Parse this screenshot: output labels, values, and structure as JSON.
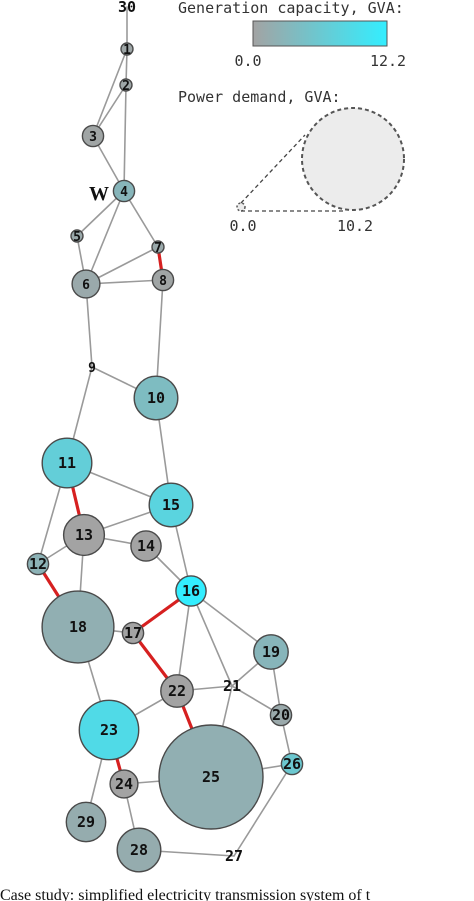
{
  "legend": {
    "generation_title": "Generation capacity, GVA:",
    "generation_min": "0.0",
    "generation_max": "12.2",
    "demand_title": "Power demand, GVA:",
    "demand_min": "0.0",
    "demand_max": "10.2",
    "gradient_low_color": "#a3a3a3",
    "gradient_high_color": "#33eeff"
  },
  "marker_label": "W",
  "caption": "Case study: simplified electricity transmission system of t",
  "colors": {
    "edge_normal": "#9a9a9a",
    "edge_critical": "#d62020",
    "node_stroke": "#4a4a4a",
    "label": "#111111"
  },
  "nodes": [
    {
      "id": "30",
      "gen": 0.0,
      "demand": 0.0
    },
    {
      "id": "1",
      "gen": 0.5,
      "demand": 0.0
    },
    {
      "id": "2",
      "gen": 0.5,
      "demand": 0.0
    },
    {
      "id": "3",
      "gen": 0.3,
      "demand": 0.1
    },
    {
      "id": "4",
      "gen": 3.0,
      "demand": 0.1
    },
    {
      "id": "5",
      "gen": 1.0,
      "demand": 0.0
    },
    {
      "id": "6",
      "gen": 1.0,
      "demand": 0.3
    },
    {
      "id": "7",
      "gen": 1.0,
      "demand": 0.0
    },
    {
      "id": "8",
      "gen": 0.3,
      "demand": 0.1
    },
    {
      "id": "9",
      "gen": 0.0,
      "demand": 0.0
    },
    {
      "id": "10",
      "gen": 4.0,
      "demand": 1.2
    },
    {
      "id": "11",
      "gen": 7.0,
      "demand": 1.7
    },
    {
      "id": "12",
      "gen": 2.5,
      "demand": 0.1
    },
    {
      "id": "13",
      "gen": 0.0,
      "demand": 1.0
    },
    {
      "id": "14",
      "gen": 0.0,
      "demand": 0.4
    },
    {
      "id": "15",
      "gen": 8.0,
      "demand": 1.2
    },
    {
      "id": "16",
      "gen": 12.2,
      "demand": 0.4
    },
    {
      "id": "17",
      "gen": 0.0,
      "demand": 0.1
    },
    {
      "id": "18",
      "gen": 2.0,
      "demand": 4.3
    },
    {
      "id": "19",
      "gen": 3.0,
      "demand": 0.6
    },
    {
      "id": "20",
      "gen": 1.0,
      "demand": 0.1
    },
    {
      "id": "21",
      "gen": 0.0,
      "demand": 0.0
    },
    {
      "id": "22",
      "gen": 0.0,
      "demand": 0.5
    },
    {
      "id": "23",
      "gen": 9.0,
      "demand": 2.7
    },
    {
      "id": "24",
      "gen": 0.0,
      "demand": 0.3
    },
    {
      "id": "25",
      "gen": 2.0,
      "demand": 10.2
    },
    {
      "id": "26",
      "gen": 6.0,
      "demand": 0.1
    },
    {
      "id": "27",
      "gen": 0.0,
      "demand": 0.0
    },
    {
      "id": "28",
      "gen": 1.5,
      "demand": 1.2
    },
    {
      "id": "29",
      "gen": 1.5,
      "demand": 0.9
    }
  ],
  "edges": [
    {
      "from": "30",
      "to": "1",
      "critical": false
    },
    {
      "from": "1",
      "to": "2",
      "critical": false
    },
    {
      "from": "1",
      "to": "3",
      "critical": false
    },
    {
      "from": "2",
      "to": "3",
      "critical": false
    },
    {
      "from": "2",
      "to": "4",
      "critical": false
    },
    {
      "from": "3",
      "to": "4",
      "critical": false
    },
    {
      "from": "4",
      "to": "5",
      "critical": false
    },
    {
      "from": "4",
      "to": "6",
      "critical": false
    },
    {
      "from": "4",
      "to": "7",
      "critical": false
    },
    {
      "from": "5",
      "to": "6",
      "critical": false
    },
    {
      "from": "6",
      "to": "7",
      "critical": false
    },
    {
      "from": "6",
      "to": "8",
      "critical": false
    },
    {
      "from": "7",
      "to": "8",
      "critical": true
    },
    {
      "from": "6",
      "to": "9",
      "critical": false
    },
    {
      "from": "8",
      "to": "10",
      "critical": false
    },
    {
      "from": "9",
      "to": "10",
      "critical": false
    },
    {
      "from": "9",
      "to": "11",
      "critical": false
    },
    {
      "from": "10",
      "to": "15",
      "critical": false
    },
    {
      "from": "11",
      "to": "15",
      "critical": false
    },
    {
      "from": "11",
      "to": "13",
      "critical": true
    },
    {
      "from": "11",
      "to": "12",
      "critical": false
    },
    {
      "from": "13",
      "to": "15",
      "critical": false
    },
    {
      "from": "13",
      "to": "14",
      "critical": false
    },
    {
      "from": "14",
      "to": "16",
      "critical": false
    },
    {
      "from": "15",
      "to": "16",
      "critical": false
    },
    {
      "from": "12",
      "to": "13",
      "critical": false
    },
    {
      "from": "12",
      "to": "18",
      "critical": true
    },
    {
      "from": "13",
      "to": "18",
      "critical": false
    },
    {
      "from": "16",
      "to": "17",
      "critical": true
    },
    {
      "from": "18",
      "to": "17",
      "critical": false
    },
    {
      "from": "17",
      "to": "22",
      "critical": true
    },
    {
      "from": "16",
      "to": "22",
      "critical": false
    },
    {
      "from": "16",
      "to": "21",
      "critical": false
    },
    {
      "from": "16",
      "to": "19",
      "critical": false
    },
    {
      "from": "18",
      "to": "23",
      "critical": false
    },
    {
      "from": "22",
      "to": "21",
      "critical": false
    },
    {
      "from": "22",
      "to": "23",
      "critical": false
    },
    {
      "from": "22",
      "to": "25",
      "critical": true
    },
    {
      "from": "21",
      "to": "19",
      "critical": false
    },
    {
      "from": "21",
      "to": "20",
      "critical": false
    },
    {
      "from": "19",
      "to": "20",
      "critical": false
    },
    {
      "from": "21",
      "to": "25",
      "critical": false
    },
    {
      "from": "20",
      "to": "26",
      "critical": false
    },
    {
      "from": "23",
      "to": "24",
      "critical": true
    },
    {
      "from": "23",
      "to": "29",
      "critical": false
    },
    {
      "from": "24",
      "to": "25",
      "critical": false
    },
    {
      "from": "24",
      "to": "28",
      "critical": false
    },
    {
      "from": "25",
      "to": "26",
      "critical": false
    },
    {
      "from": "26",
      "to": "27",
      "critical": false
    },
    {
      "from": "28",
      "to": "27",
      "critical": false
    }
  ]
}
